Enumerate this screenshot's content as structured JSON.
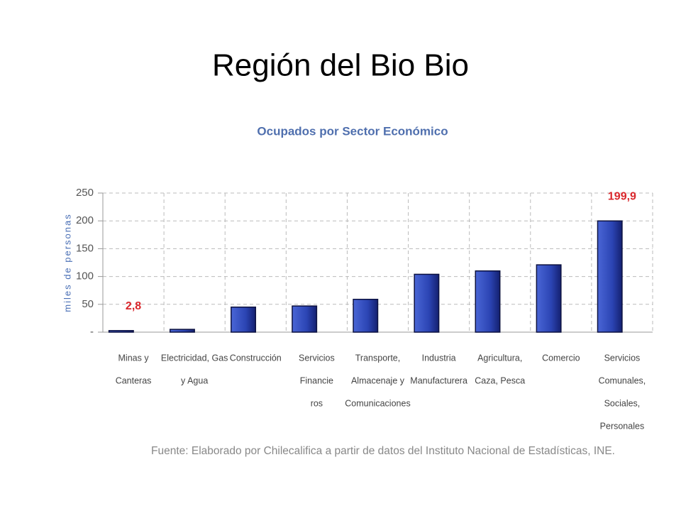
{
  "slide_title": "Región del Bio Bio",
  "chart_data": {
    "type": "bar",
    "title": "Ocupados por Sector Económico",
    "y_label": "miles de personas",
    "categories": [
      [
        "Minas y",
        "Canteras"
      ],
      [
        "Electricidad, Gas",
        "y Agua"
      ],
      [
        "Construcción"
      ],
      [
        "Servicios",
        "Financie",
        "ros"
      ],
      [
        "Transporte,",
        "Almacenaje y",
        "Comunicaciones"
      ],
      [
        "Industria",
        "Manufacturera"
      ],
      [
        "Agricultura,",
        "Caza, Pesca"
      ],
      [
        "Comercio"
      ],
      [
        "Servicios",
        "Comunales,",
        "Sociales,",
        "Personales"
      ]
    ],
    "values": [
      2.8,
      5,
      45,
      47,
      59,
      104,
      110,
      121,
      199.9
    ],
    "value_labels": [
      "2,8",
      null,
      null,
      null,
      null,
      null,
      null,
      null,
      "199,9"
    ],
    "color": "#2b44b3",
    "value_label_color": "#d9262b",
    "ylim": [
      0,
      250
    ],
    "yticks": [
      {
        "value": 0,
        "label": "-"
      },
      50,
      100,
      150,
      200,
      250
    ],
    "grid": true,
    "source": "Fuente: Elaborado por Chilecalifica a partir de datos del Instituto Nacional de Estadísticas, INE."
  }
}
